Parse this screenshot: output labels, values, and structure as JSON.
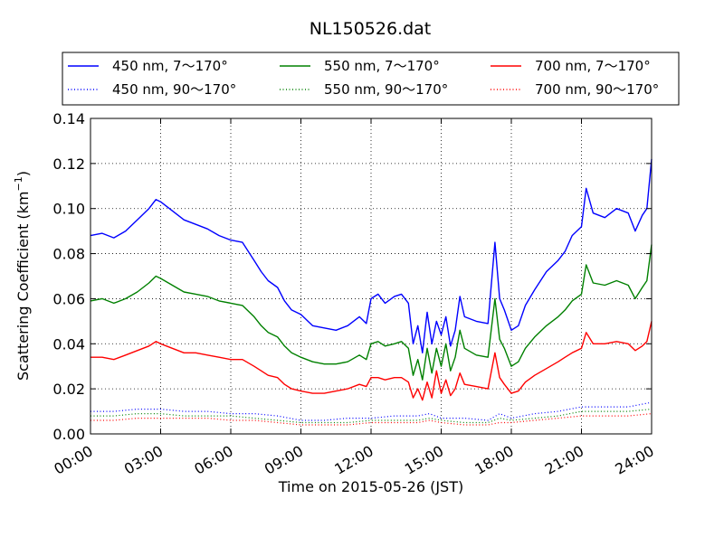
{
  "chart_data": {
    "type": "line",
    "title": "NL150526.dat",
    "xlabel": "Time on 2015-05-26 (JST)",
    "ylabel": "Scattering Coefficient (km",
    "ylabel_sup": "−1",
    "ylabel_end": ")",
    "x_unit": "hour",
    "xlim": [
      0,
      24
    ],
    "ylim": [
      0,
      0.14
    ],
    "grid": true,
    "legend_position": "top",
    "x_ticks": [
      {
        "value": 0,
        "label": "00:00"
      },
      {
        "value": 3,
        "label": "03:00"
      },
      {
        "value": 6,
        "label": "06:00"
      },
      {
        "value": 9,
        "label": "09:00"
      },
      {
        "value": 12,
        "label": "12:00"
      },
      {
        "value": 15,
        "label": "15:00"
      },
      {
        "value": 18,
        "label": "18:00"
      },
      {
        "value": 21,
        "label": "21:00"
      },
      {
        "value": 24,
        "label": "24:00"
      }
    ],
    "y_ticks": [
      {
        "value": 0,
        "label": "0.00"
      },
      {
        "value": 0.02,
        "label": "0.02"
      },
      {
        "value": 0.04,
        "label": "0.04"
      },
      {
        "value": 0.06,
        "label": "0.06"
      },
      {
        "value": 0.08,
        "label": "0.08"
      },
      {
        "value": 0.1,
        "label": "0.10"
      },
      {
        "value": 0.12,
        "label": "0.12"
      },
      {
        "value": 0.14,
        "label": "0.14"
      }
    ],
    "series": [
      {
        "name": "450 nm, 7～170°",
        "color": "#0000ff",
        "style": "solid",
        "x": [
          0,
          0.5,
          1,
          1.5,
          2,
          2.5,
          2.8,
          3,
          3.5,
          4,
          4.5,
          5,
          5.5,
          6,
          6.5,
          7,
          7.3,
          7.6,
          8,
          8.3,
          8.6,
          9,
          9.5,
          10,
          10.5,
          11,
          11.5,
          11.8,
          12,
          12.3,
          12.6,
          13,
          13.3,
          13.6,
          13.8,
          14,
          14.2,
          14.4,
          14.6,
          14.8,
          15,
          15.2,
          15.4,
          15.6,
          15.8,
          16,
          16.5,
          17,
          17.3,
          17.5,
          17.7,
          18,
          18.3,
          18.6,
          19,
          19.5,
          20,
          20.3,
          20.6,
          21,
          21.2,
          21.5,
          22,
          22.5,
          23,
          23.3,
          23.6,
          23.8,
          24
        ],
        "y": [
          0.088,
          0.089,
          0.087,
          0.09,
          0.095,
          0.1,
          0.104,
          0.103,
          0.099,
          0.095,
          0.093,
          0.091,
          0.088,
          0.086,
          0.085,
          0.077,
          0.072,
          0.068,
          0.065,
          0.059,
          0.055,
          0.053,
          0.048,
          0.047,
          0.046,
          0.048,
          0.052,
          0.049,
          0.06,
          0.062,
          0.058,
          0.061,
          0.062,
          0.058,
          0.04,
          0.048,
          0.036,
          0.054,
          0.04,
          0.05,
          0.044,
          0.052,
          0.039,
          0.046,
          0.061,
          0.052,
          0.05,
          0.049,
          0.085,
          0.06,
          0.055,
          0.046,
          0.048,
          0.057,
          0.064,
          0.072,
          0.077,
          0.081,
          0.088,
          0.092,
          0.109,
          0.098,
          0.096,
          0.1,
          0.098,
          0.09,
          0.097,
          0.1,
          0.122
        ]
      },
      {
        "name": "550 nm, 7～170°",
        "color": "#008000",
        "style": "solid",
        "x": [
          0,
          0.5,
          1,
          1.5,
          2,
          2.5,
          2.8,
          3,
          3.5,
          4,
          4.5,
          5,
          5.5,
          6,
          6.5,
          7,
          7.3,
          7.6,
          8,
          8.3,
          8.6,
          9,
          9.5,
          10,
          10.5,
          11,
          11.5,
          11.8,
          12,
          12.3,
          12.6,
          13,
          13.3,
          13.6,
          13.8,
          14,
          14.2,
          14.4,
          14.6,
          14.8,
          15,
          15.2,
          15.4,
          15.6,
          15.8,
          16,
          16.5,
          17,
          17.3,
          17.5,
          17.7,
          18,
          18.3,
          18.6,
          19,
          19.5,
          20,
          20.3,
          20.6,
          21,
          21.2,
          21.5,
          22,
          22.5,
          23,
          23.3,
          23.6,
          23.8,
          24
        ],
        "y": [
          0.059,
          0.06,
          0.058,
          0.06,
          0.063,
          0.067,
          0.07,
          0.069,
          0.066,
          0.063,
          0.062,
          0.061,
          0.059,
          0.058,
          0.057,
          0.052,
          0.048,
          0.045,
          0.043,
          0.039,
          0.036,
          0.034,
          0.032,
          0.031,
          0.031,
          0.032,
          0.035,
          0.033,
          0.04,
          0.041,
          0.039,
          0.04,
          0.041,
          0.038,
          0.026,
          0.033,
          0.024,
          0.038,
          0.027,
          0.038,
          0.03,
          0.04,
          0.028,
          0.034,
          0.046,
          0.038,
          0.035,
          0.034,
          0.06,
          0.042,
          0.038,
          0.03,
          0.032,
          0.038,
          0.043,
          0.048,
          0.052,
          0.055,
          0.059,
          0.062,
          0.075,
          0.067,
          0.066,
          0.068,
          0.066,
          0.06,
          0.065,
          0.068,
          0.084
        ]
      },
      {
        "name": "700 nm, 7～170°",
        "color": "#ff0000",
        "style": "solid",
        "x": [
          0,
          0.5,
          1,
          1.5,
          2,
          2.5,
          2.8,
          3,
          3.5,
          4,
          4.5,
          5,
          5.5,
          6,
          6.5,
          7,
          7.3,
          7.6,
          8,
          8.3,
          8.6,
          9,
          9.5,
          10,
          10.5,
          11,
          11.5,
          11.8,
          12,
          12.3,
          12.6,
          13,
          13.3,
          13.6,
          13.8,
          14,
          14.2,
          14.4,
          14.6,
          14.8,
          15,
          15.2,
          15.4,
          15.6,
          15.8,
          16,
          16.5,
          17,
          17.3,
          17.5,
          17.7,
          18,
          18.3,
          18.6,
          19,
          19.5,
          20,
          20.3,
          20.6,
          21,
          21.2,
          21.5,
          22,
          22.5,
          23,
          23.3,
          23.6,
          23.8,
          24
        ],
        "y": [
          0.034,
          0.034,
          0.033,
          0.035,
          0.037,
          0.039,
          0.041,
          0.04,
          0.038,
          0.036,
          0.036,
          0.035,
          0.034,
          0.033,
          0.033,
          0.03,
          0.028,
          0.026,
          0.025,
          0.022,
          0.02,
          0.019,
          0.018,
          0.018,
          0.019,
          0.02,
          0.022,
          0.021,
          0.025,
          0.025,
          0.024,
          0.025,
          0.025,
          0.023,
          0.016,
          0.02,
          0.015,
          0.023,
          0.016,
          0.028,
          0.018,
          0.024,
          0.017,
          0.02,
          0.027,
          0.022,
          0.021,
          0.02,
          0.036,
          0.025,
          0.022,
          0.018,
          0.019,
          0.023,
          0.026,
          0.029,
          0.032,
          0.034,
          0.036,
          0.038,
          0.045,
          0.04,
          0.04,
          0.041,
          0.04,
          0.037,
          0.039,
          0.041,
          0.05
        ]
      },
      {
        "name": "450 nm, 90～170°",
        "color": "#0000ff",
        "style": "dotted",
        "x": [
          0,
          1,
          2,
          3,
          4,
          5,
          6,
          7,
          8,
          9,
          10,
          11,
          12,
          13,
          14,
          14.5,
          15,
          16,
          17,
          17.5,
          18,
          19,
          20,
          21,
          22,
          23,
          24
        ],
        "y": [
          0.01,
          0.01,
          0.011,
          0.011,
          0.01,
          0.01,
          0.009,
          0.009,
          0.008,
          0.006,
          0.006,
          0.007,
          0.007,
          0.008,
          0.008,
          0.009,
          0.007,
          0.007,
          0.006,
          0.009,
          0.007,
          0.009,
          0.01,
          0.012,
          0.012,
          0.012,
          0.014
        ]
      },
      {
        "name": "550 nm, 90～170°",
        "color": "#008000",
        "style": "dotted",
        "x": [
          0,
          1,
          2,
          3,
          4,
          5,
          6,
          7,
          8,
          9,
          10,
          11,
          12,
          13,
          14,
          14.5,
          15,
          16,
          17,
          17.5,
          18,
          19,
          20,
          21,
          22,
          23,
          24
        ],
        "y": [
          0.008,
          0.008,
          0.009,
          0.009,
          0.008,
          0.008,
          0.008,
          0.007,
          0.006,
          0.005,
          0.005,
          0.005,
          0.006,
          0.006,
          0.006,
          0.007,
          0.006,
          0.005,
          0.005,
          0.007,
          0.006,
          0.007,
          0.008,
          0.01,
          0.01,
          0.01,
          0.011
        ]
      },
      {
        "name": "700 nm, 90～170°",
        "color": "#ff0000",
        "style": "dotted",
        "x": [
          0,
          1,
          2,
          3,
          4,
          5,
          6,
          7,
          8,
          9,
          10,
          11,
          12,
          13,
          14,
          14.5,
          15,
          16,
          17,
          17.5,
          18,
          19,
          20,
          21,
          22,
          23,
          24
        ],
        "y": [
          0.006,
          0.006,
          0.007,
          0.007,
          0.007,
          0.007,
          0.006,
          0.006,
          0.005,
          0.004,
          0.004,
          0.004,
          0.005,
          0.005,
          0.005,
          0.006,
          0.005,
          0.004,
          0.004,
          0.005,
          0.005,
          0.006,
          0.007,
          0.008,
          0.008,
          0.008,
          0.009
        ]
      }
    ],
    "legend_order": [
      0,
      1,
      2,
      3,
      4,
      5
    ]
  }
}
